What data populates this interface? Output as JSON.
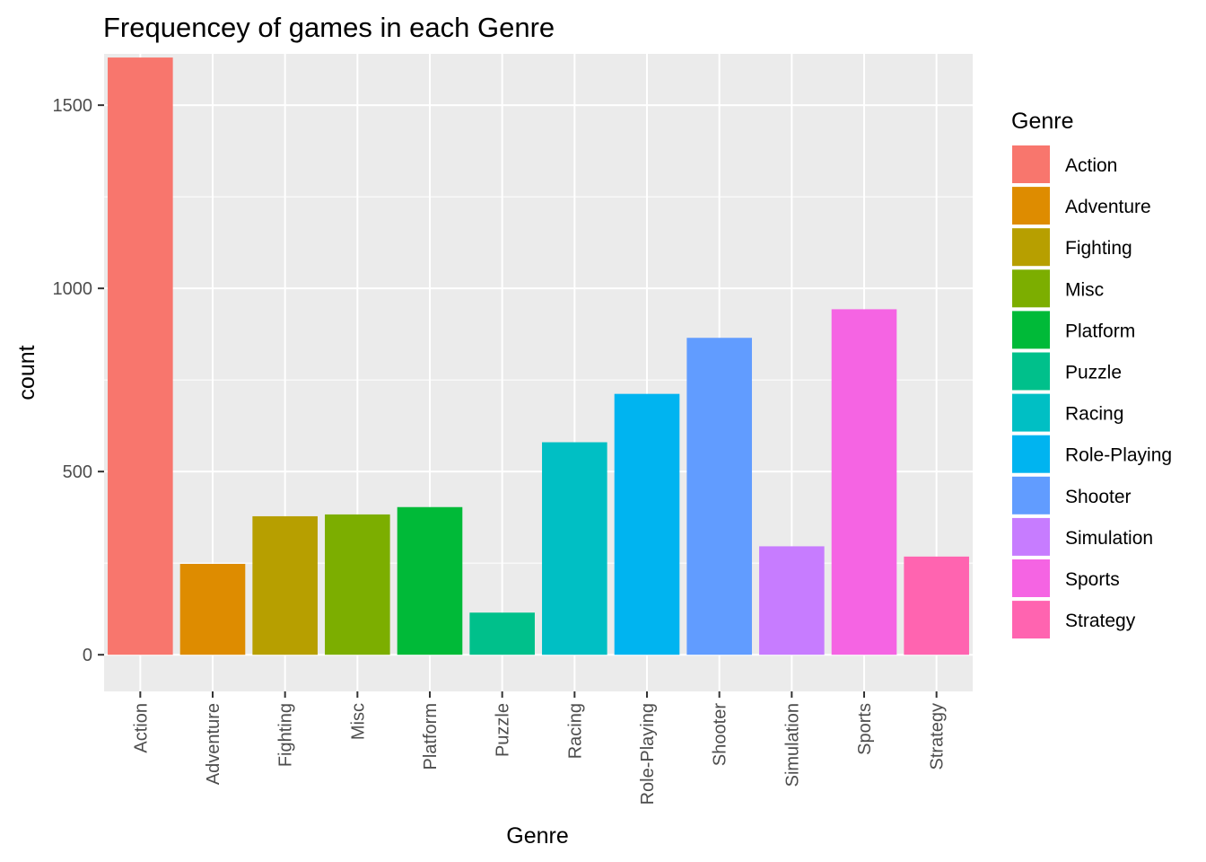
{
  "chart_data": {
    "type": "bar",
    "title": "Frequencey of games in each Genre",
    "xlabel": "Genre",
    "ylabel": "count",
    "ylim": [
      -100,
      1640
    ],
    "yticks": [
      0,
      500,
      1000,
      1500
    ],
    "grid": true,
    "legend_placement": "right",
    "legend_title": "Genre",
    "categories": [
      "Action",
      "Adventure",
      "Fighting",
      "Misc",
      "Platform",
      "Puzzle",
      "Racing",
      "Role-Playing",
      "Shooter",
      "Simulation",
      "Sports",
      "Strategy"
    ],
    "values": [
      1630,
      248,
      378,
      383,
      403,
      115,
      580,
      712,
      865,
      296,
      943,
      268
    ],
    "colors": [
      "#F8766D",
      "#DE8C00",
      "#B79F00",
      "#7CAE00",
      "#00BA38",
      "#00C08B",
      "#00BFC4",
      "#00B4F0",
      "#619CFF",
      "#C77CFF",
      "#F564E3",
      "#FF64B0"
    ],
    "panel_background": "#EBEBEB",
    "grid_color": "#FFFFFF"
  }
}
